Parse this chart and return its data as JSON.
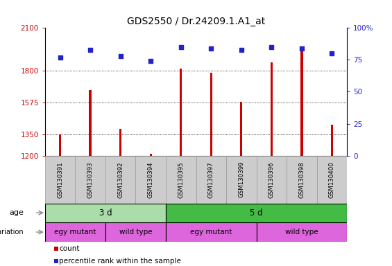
{
  "title": "GDS2550 / Dr.24209.1.A1_at",
  "samples": [
    "GSM130391",
    "GSM130393",
    "GSM130392",
    "GSM130394",
    "GSM130395",
    "GSM130397",
    "GSM130399",
    "GSM130396",
    "GSM130398",
    "GSM130400"
  ],
  "counts": [
    1352,
    1660,
    1388,
    1212,
    1815,
    1782,
    1578,
    1858,
    1950,
    1420
  ],
  "percentiles": [
    77,
    83,
    78,
    74,
    85,
    84,
    83,
    85,
    84,
    80
  ],
  "ymin": 1200,
  "ymax": 2100,
  "yticks_left": [
    1200,
    1350,
    1575,
    1800,
    2100
  ],
  "yticks_right": [
    0,
    25,
    50,
    75,
    100
  ],
  "bar_color": "#cc0000",
  "dot_color": "#2222cc",
  "bg_color": "#ffffff",
  "plot_bg": "#ffffff",
  "age_light_green": "#aaddaa",
  "age_dark_green": "#44bb44",
  "geno_pink": "#dd66dd",
  "age_groups": [
    {
      "label": "3 d",
      "start": 0,
      "end": 4,
      "color_key": "age_light_green"
    },
    {
      "label": "5 d",
      "start": 4,
      "end": 10,
      "color_key": "age_dark_green"
    }
  ],
  "genotype_groups": [
    {
      "label": "egy mutant",
      "start": 0,
      "end": 2,
      "color_key": "geno_pink"
    },
    {
      "label": "wild type",
      "start": 2,
      "end": 4,
      "color_key": "geno_pink"
    },
    {
      "label": "egy mutant",
      "start": 4,
      "end": 7,
      "color_key": "geno_pink"
    },
    {
      "label": "wild type",
      "start": 7,
      "end": 10,
      "color_key": "geno_pink"
    }
  ],
  "legend_items": [
    {
      "color": "#cc0000",
      "label": "count"
    },
    {
      "color": "#2222cc",
      "label": "percentile rank within the sample"
    }
  ],
  "title_fontsize": 10,
  "tick_fontsize": 7.5,
  "label_fontsize": 8.5,
  "ann_fontsize": 8
}
